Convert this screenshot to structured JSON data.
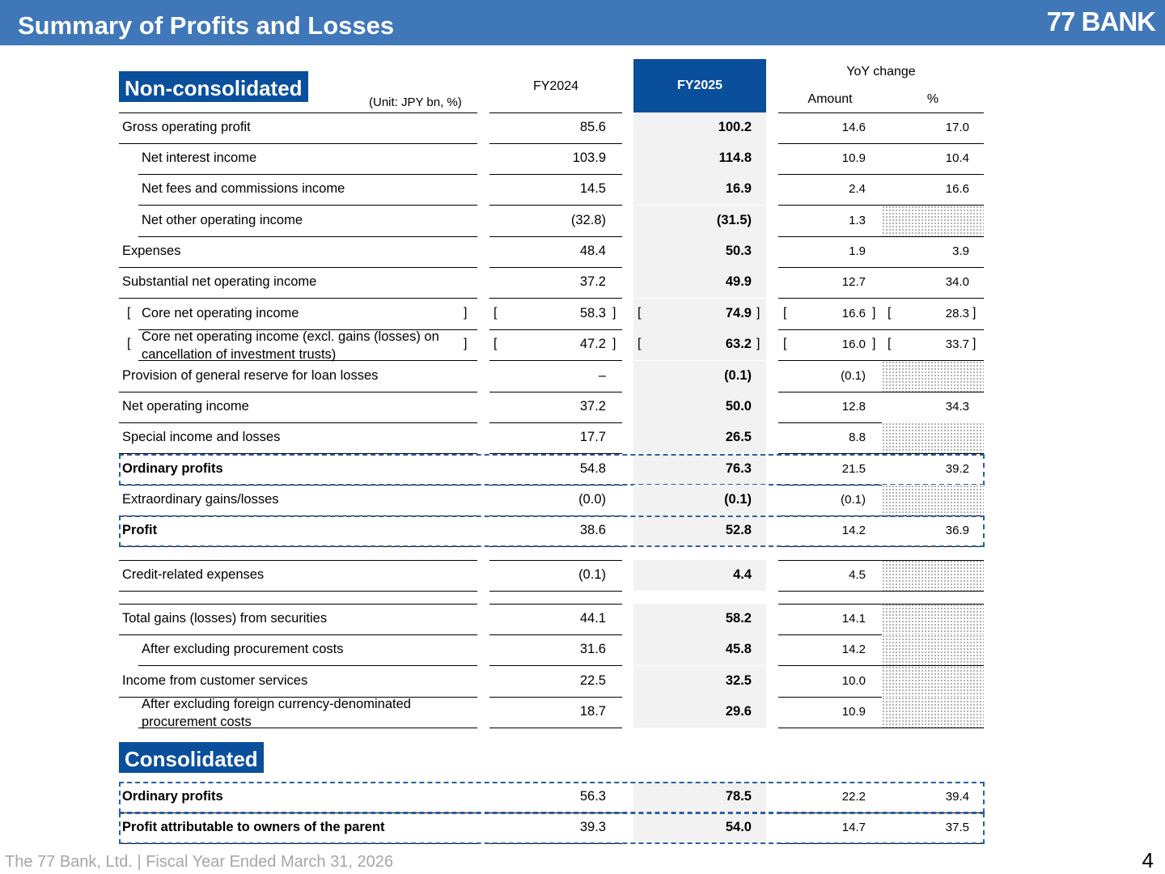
{
  "header": {
    "title": "Summary of Profits and Losses",
    "logo": "77 BANK"
  },
  "non_consolidated": {
    "tag": "Non-consolidated",
    "unit": "(Unit: JPY bn, %)",
    "col_fy2024": "FY2024",
    "col_fy2025": "FY2025",
    "col_yoy": "YoY change",
    "col_amount": "Amount",
    "col_pct": "%",
    "rows": [
      {
        "label": "Gross operating profit",
        "fy2024": "85.6",
        "fy2025": "100.2",
        "amount": "14.6",
        "pct": "17.0"
      },
      {
        "label": "Net interest income",
        "fy2024": "103.9",
        "fy2025": "114.8",
        "amount": "10.9",
        "pct": "10.4"
      },
      {
        "label": "Net fees and commissions income",
        "fy2024": "14.5",
        "fy2025": "16.9",
        "amount": "2.4",
        "pct": "16.6"
      },
      {
        "label": "Net other operating income",
        "fy2024": "(32.8)",
        "fy2025": "(31.5)",
        "amount": "1.3",
        "pct": ""
      },
      {
        "label": "Expenses",
        "fy2024": "48.4",
        "fy2025": "50.3",
        "amount": "1.9",
        "pct": "3.9"
      },
      {
        "label": "Substantial net operating income",
        "fy2024": "37.2",
        "fy2025": "49.9",
        "amount": "12.7",
        "pct": "34.0"
      },
      {
        "label": "Core net operating income",
        "fy2024": "58.3",
        "fy2025": "74.9",
        "amount": "16.6",
        "pct": "28.3"
      },
      {
        "label": "Core net operating income (excl. gains (losses) on cancellation of investment trusts)",
        "fy2024": "47.2",
        "fy2025": "63.2",
        "amount": "16.0",
        "pct": "33.7"
      },
      {
        "label": "Provision of general reserve for loan losses",
        "fy2024": "–",
        "fy2025": "(0.1)",
        "amount": "(0.1)",
        "pct": ""
      },
      {
        "label": "Net operating income",
        "fy2024": "37.2",
        "fy2025": "50.0",
        "amount": "12.8",
        "pct": "34.3"
      },
      {
        "label": "Special income and losses",
        "fy2024": "17.7",
        "fy2025": "26.5",
        "amount": "8.8",
        "pct": ""
      },
      {
        "label": "Ordinary profits",
        "fy2024": "54.8",
        "fy2025": "76.3",
        "amount": "21.5",
        "pct": "39.2"
      },
      {
        "label": "Extraordinary gains/losses",
        "fy2024": "(0.0)",
        "fy2025": "(0.1)",
        "amount": "(0.1)",
        "pct": ""
      },
      {
        "label": "Profit",
        "fy2024": "38.6",
        "fy2025": "52.8",
        "amount": "14.2",
        "pct": "36.9"
      },
      {
        "label": "Credit-related expenses",
        "fy2024": "(0.1)",
        "fy2025": "4.4",
        "amount": "4.5",
        "pct": ""
      },
      {
        "label": "Total gains (losses) from securities",
        "fy2024": "44.1",
        "fy2025": "58.2",
        "amount": "14.1",
        "pct": ""
      },
      {
        "label": "After excluding procurement costs",
        "fy2024": "31.6",
        "fy2025": "45.8",
        "amount": "14.2",
        "pct": ""
      },
      {
        "label": "Income from customer services",
        "fy2024": "22.5",
        "fy2025": "32.5",
        "amount": "10.0",
        "pct": ""
      },
      {
        "label": "After excluding foreign currency-denominated procurement costs",
        "fy2024": "18.7",
        "fy2025": "29.6",
        "amount": "10.9",
        "pct": ""
      }
    ]
  },
  "consolidated": {
    "tag": "Consolidated",
    "rows": [
      {
        "label": "Ordinary profits",
        "fy2024": "56.3",
        "fy2025": "78.5",
        "amount": "22.2",
        "pct": "39.4"
      },
      {
        "label": "Profit attributable to owners of the parent",
        "fy2024": "39.3",
        "fy2025": "54.0",
        "amount": "14.7",
        "pct": "37.5"
      }
    ]
  },
  "footer": {
    "text": "The 77 Bank, Ltd. | Fiscal Year Ended March 31, 2026",
    "page": "4"
  }
}
